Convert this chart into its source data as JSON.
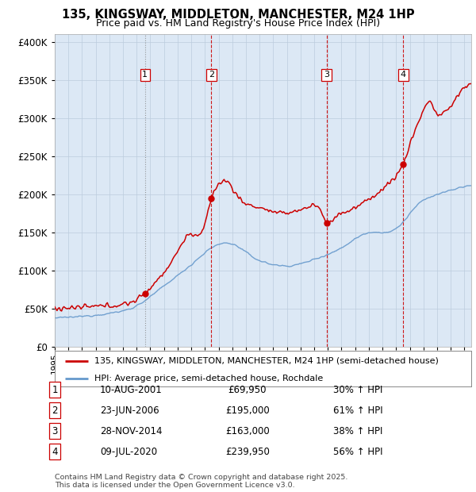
{
  "title1": "135, KINGSWAY, MIDDLETON, MANCHESTER, M24 1HP",
  "title2": "Price paid vs. HM Land Registry's House Price Index (HPI)",
  "ylabel_ticks": [
    "£0",
    "£50K",
    "£100K",
    "£150K",
    "£200K",
    "£250K",
    "£300K",
    "£350K",
    "£400K"
  ],
  "ylim": [
    0,
    410000
  ],
  "xlim_start": 1995.0,
  "xlim_end": 2025.5,
  "legend_line1": "135, KINGSWAY, MIDDLETON, MANCHESTER, M24 1HP (semi-detached house)",
  "legend_line2": "HPI: Average price, semi-detached house, Rochdale",
  "transactions": [
    {
      "num": 1,
      "date": "10-AUG-2001",
      "price": 69950,
      "change": "30% ↑ HPI",
      "year": 2001.61
    },
    {
      "num": 2,
      "date": "23-JUN-2006",
      "price": 195000,
      "change": "61% ↑ HPI",
      "year": 2006.47
    },
    {
      "num": 3,
      "date": "28-NOV-2014",
      "price": 163000,
      "change": "38% ↑ HPI",
      "year": 2014.9
    },
    {
      "num": 4,
      "date": "09-JUL-2020",
      "price": 239950,
      "change": "56% ↑ HPI",
      "year": 2020.52
    }
  ],
  "footnote1": "Contains HM Land Registry data © Crown copyright and database right 2025.",
  "footnote2": "This data is licensed under the Open Government Licence v3.0.",
  "bg_color": "#dce8f5",
  "plot_bg": "#dce8f5",
  "red_color": "#cc0000",
  "blue_color": "#6699cc",
  "grid_color": "#bbccdd"
}
